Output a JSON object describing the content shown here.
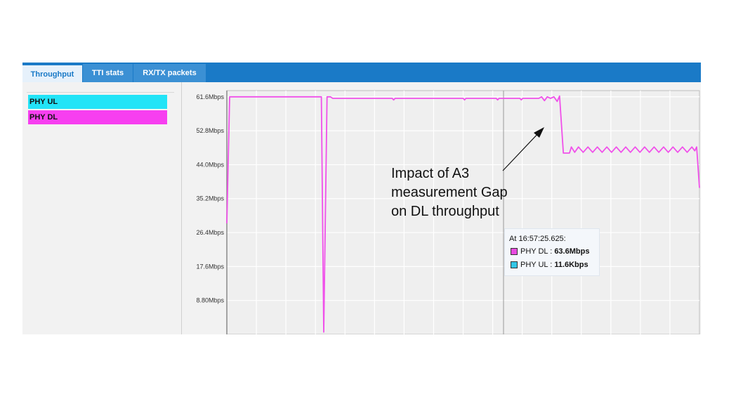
{
  "tabs": [
    {
      "label": "Throughput",
      "active": true
    },
    {
      "label": "TTI stats",
      "active": false
    },
    {
      "label": "RX/TX packets",
      "active": false
    }
  ],
  "legend": [
    {
      "label": "PHY UL",
      "color": "#22e4f7"
    },
    {
      "label": "PHY DL",
      "color": "#f73ff0"
    }
  ],
  "tooltip": {
    "time": "At 16:57:25.625:",
    "rows": [
      {
        "series": "PHY DL",
        "sep": " : ",
        "value": "63.6Mbps",
        "color": "#e84be0"
      },
      {
        "series": "PHY UL",
        "sep": " : ",
        "value": "11.6Kbps",
        "color": "#33c6e6"
      }
    ]
  },
  "annotation": {
    "lines": [
      "Impact of A3",
      "measurement Gap",
      "on DL throughput"
    ]
  },
  "chart_data": {
    "type": "line",
    "y_unit": "Mbps",
    "y_ticks": [
      "61.6Mbps",
      "52.8Mbps",
      "44.0Mbps",
      "35.2Mbps",
      "26.4Mbps",
      "17.6Mbps",
      "8.80Mbps"
    ],
    "y_tick_values": [
      61.6,
      52.8,
      44.0,
      35.2,
      26.4,
      17.6,
      8.8
    ],
    "ylim": [
      0,
      63.2
    ],
    "xlim": [
      0,
      100
    ],
    "grid": true,
    "series": [
      {
        "name": "PHY DL",
        "color": "#f050ea",
        "x": [
          0,
          0.6,
          1.2,
          20.0,
          20.5,
          21.2,
          21.9,
          22.4,
          35,
          35.3,
          35.6,
          50,
          50.3,
          50.6,
          57,
          57.3,
          57.6,
          62,
          62.3,
          62.6,
          66,
          66.6,
          67.2,
          67.8,
          68.5,
          69.2,
          69.9,
          70.4,
          71.2,
          72.5,
          72.9,
          73.6,
          74.4,
          75.4,
          76.4,
          77.4,
          78.4,
          79.4,
          80.4,
          81.4,
          82.4,
          83.4,
          84.4,
          85.4,
          86.4,
          87.4,
          88.4,
          89.4,
          90.4,
          91.4,
          92.4,
          93.4,
          94.4,
          95.4,
          96.4,
          97.4,
          98.4,
          99.0,
          99.4,
          100
        ],
        "y": [
          28.8,
          61.6,
          61.6,
          61.6,
          0.6,
          61.6,
          61.6,
          61.2,
          61.2,
          60.8,
          61.2,
          61.2,
          60.8,
          61.2,
          61.2,
          60.8,
          61.2,
          61.2,
          60.8,
          61.2,
          61.2,
          61.6,
          60.6,
          61.6,
          61.2,
          61.6,
          60.4,
          61.8,
          47.0,
          47.0,
          48.6,
          47.2,
          48.6,
          47.2,
          48.6,
          47.2,
          48.6,
          47.2,
          48.6,
          47.2,
          48.6,
          47.2,
          48.6,
          47.2,
          48.6,
          47.2,
          48.6,
          47.2,
          48.6,
          47.2,
          48.6,
          47.2,
          48.6,
          47.2,
          48.6,
          47.2,
          48.6,
          47.6,
          48.6,
          38.0
        ]
      }
    ]
  }
}
